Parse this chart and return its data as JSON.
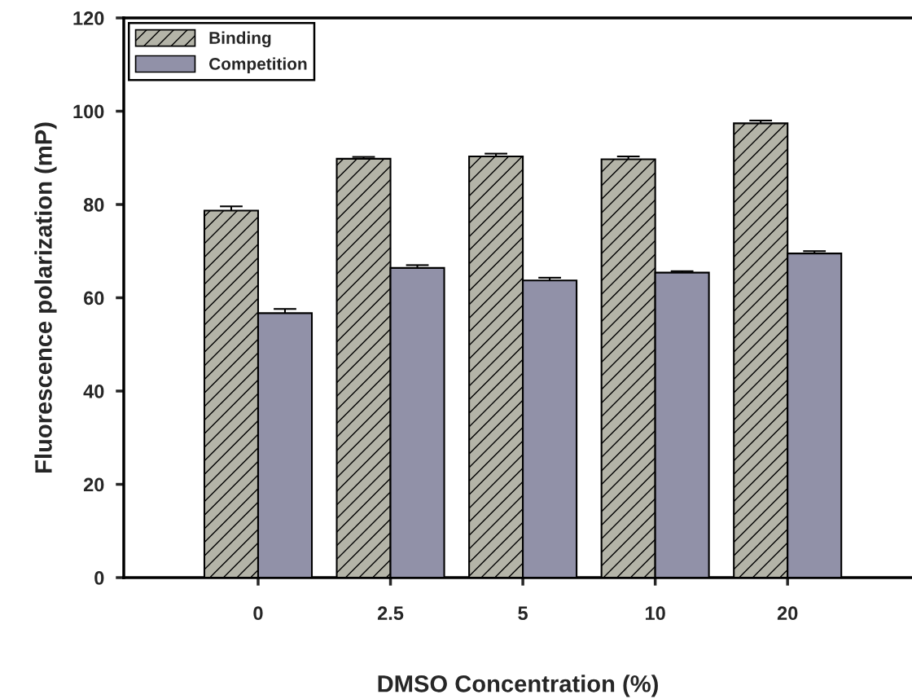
{
  "chart_data": {
    "type": "bar",
    "xlabel": "DMSO Concentration (%)",
    "ylabel": "Fluorescence polarization (mP)",
    "categories": [
      "0",
      "2.5",
      "5",
      "10",
      "20"
    ],
    "series": [
      {
        "name": "Binding",
        "color": "#b4b4a8",
        "values": [
          78.7,
          89.8,
          90.3,
          89.7,
          97.4
        ],
        "errors": [
          0.9,
          0.4,
          0.6,
          0.6,
          0.6
        ]
      },
      {
        "name": "Competition",
        "color": "#9191a8",
        "values": [
          56.7,
          66.4,
          63.7,
          65.4,
          69.5
        ],
        "errors": [
          0.9,
          0.6,
          0.6,
          0.3,
          0.5
        ]
      }
    ],
    "ylim": [
      0,
      120
    ],
    "yticks": [
      0,
      20,
      40,
      60,
      80,
      100,
      120
    ],
    "legend": "top left",
    "grid": false
  }
}
